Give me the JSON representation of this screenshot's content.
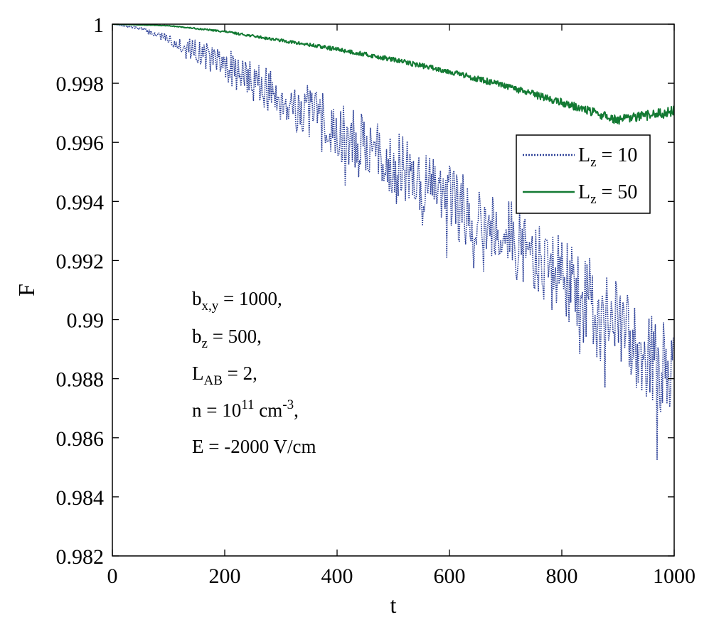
{
  "chart_data": {
    "type": "line",
    "xlabel": "t",
    "ylabel": "F",
    "xlim": [
      0,
      1000
    ],
    "ylim": [
      0.982,
      1
    ],
    "xticks": [
      0,
      200,
      400,
      600,
      800,
      1000
    ],
    "xtick_labels": [
      "0",
      "200",
      "400",
      "600",
      "800",
      "1000"
    ],
    "yticks": [
      0.982,
      0.984,
      0.986,
      0.988,
      0.99,
      0.992,
      0.994,
      0.996,
      0.998,
      1
    ],
    "ytick_labels": [
      "0.982",
      "0.984",
      "0.986",
      "0.988",
      "0.99",
      "0.992",
      "0.994",
      "0.996",
      "0.998",
      "1"
    ],
    "grid": false,
    "legend_position": "upper-right",
    "series": [
      {
        "name": "L_z = 10",
        "legend_main": "L",
        "legend_sub": "z",
        "legend_rest": " = 10",
        "style": "dotted",
        "color": "#2b3f97",
        "x": [
          0,
          50,
          100,
          150,
          200,
          250,
          300,
          350,
          400,
          450,
          500,
          550,
          600,
          650,
          700,
          750,
          800,
          850,
          900,
          950,
          1000
        ],
        "y": [
          1.0,
          0.99985,
          0.9995,
          0.9991,
          0.9986,
          0.9981,
          0.9975,
          0.997,
          0.9964,
          0.9959,
          0.9953,
          0.9947,
          0.9941,
          0.9935,
          0.9929,
          0.9922,
          0.9914,
          0.9906,
          0.9898,
          0.9889,
          0.988
        ],
        "noise_amplitude": [
          0.0,
          5e-05,
          0.0002,
          0.0004,
          0.0006,
          0.0007,
          0.0008,
          0.0009,
          0.001,
          0.001,
          0.0011,
          0.0011,
          0.0012,
          0.0012,
          0.0013,
          0.0013,
          0.0014,
          0.0015,
          0.0015,
          0.0016,
          0.0017
        ],
        "noise_seed": 7
      },
      {
        "name": "L_z = 50",
        "legend_main": "L",
        "legend_sub": "z",
        "legend_rest": " = 50",
        "style": "solid",
        "color": "#137a33",
        "x": [
          0,
          100,
          200,
          300,
          400,
          500,
          600,
          700,
          800,
          900,
          1000
        ],
        "y": [
          1.0,
          0.99995,
          0.99975,
          0.99945,
          0.99915,
          0.9988,
          0.9984,
          0.9979,
          0.99735,
          0.99675,
          0.99705
        ],
        "noise_amplitude": [
          0.0,
          1e-05,
          3e-05,
          5e-05,
          7e-05,
          8e-05,
          9e-05,
          0.00011,
          0.00013,
          0.00016,
          0.00018
        ],
        "noise_seed": 13
      }
    ],
    "annotation": [
      {
        "main": "b",
        "sub": "x,y",
        "sup": "",
        "rest": " = 1000,"
      },
      {
        "main": "b",
        "sub": "z",
        "sup": "",
        "rest": " = 500,"
      },
      {
        "main": "L",
        "sub": "AB",
        "sup": "",
        "rest": " = 2,"
      },
      {
        "main": "n = 10",
        "sub": "",
        "sup": "11",
        "rest": " cm",
        "sup2": "-3",
        "rest2": ","
      },
      {
        "main": "E = -2000 V/cm",
        "sub": "",
        "sup": "",
        "rest": ""
      }
    ]
  }
}
